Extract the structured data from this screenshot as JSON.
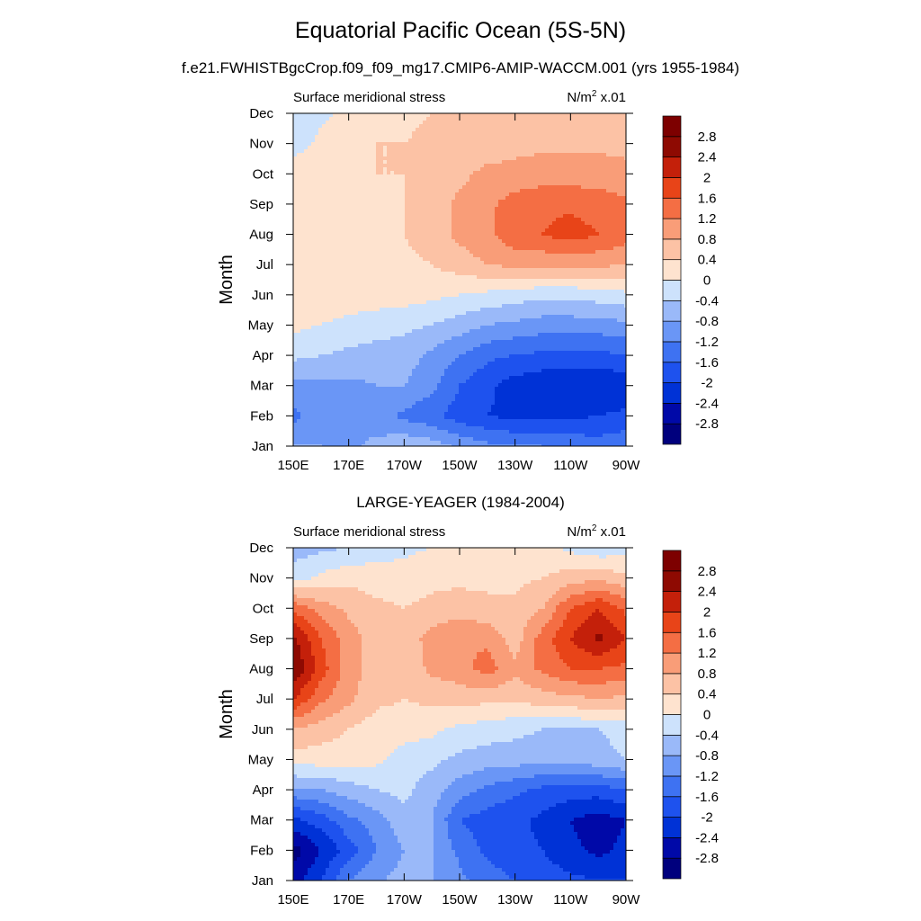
{
  "page": {
    "title": "Equatorial Pacific Ocean (5S-5N)",
    "subtitle": "f.e21.FWHISTBgcCrop.f09_f09_mg17.CMIP6-AMIP-WACCM.001 (yrs 1955-1984)"
  },
  "colors": {
    "levels": [
      -2.8,
      -2.4,
      -2.0,
      -1.6,
      -1.2,
      -0.8,
      -0.4,
      0.0,
      0.4,
      0.8,
      1.2,
      1.6,
      2.0,
      2.4,
      2.8
    ],
    "fills": [
      "#00007d",
      "#0009a8",
      "#0032d6",
      "#1e52ee",
      "#3e72f2",
      "#6a96f6",
      "#9ab9f9",
      "#cde2fc",
      "#fee3cf",
      "#fcc2a5",
      "#f99d78",
      "#f46e44",
      "#e84418",
      "#c4200a",
      "#8e0a02",
      "#7d0000"
    ]
  },
  "chart_data": [
    {
      "type": "heatmap",
      "title": "",
      "left_label": "Surface meridional stress",
      "right_label": "N/m",
      "right_label_sup": "2",
      "right_label_suffix": " x.01",
      "ylabel": "Month",
      "x_ticks": [
        "150E",
        "170E",
        "170W",
        "150W",
        "130W",
        "110W",
        "90W"
      ],
      "y_ticks": [
        "Jan",
        "Feb",
        "Mar",
        "Apr",
        "May",
        "Jun",
        "Jul",
        "Aug",
        "Sep",
        "Oct",
        "Nov",
        "Dec"
      ],
      "colorbar_labels": [
        "-2.8",
        "-2.4",
        "-2",
        "-1.6",
        "-1.2",
        "-0.8",
        "-0.4",
        "0",
        "0.4",
        "0.8",
        "1.2",
        "1.6",
        "2",
        "2.4",
        "2.8"
      ],
      "x_lon": [
        150,
        160,
        170,
        180,
        190,
        200,
        210,
        220,
        230,
        240,
        250,
        260,
        270
      ],
      "values": [
        [
          -0.8,
          -0.8,
          -0.9,
          -0.7,
          -0.5,
          -0.6,
          -0.9,
          -1.1,
          -1.2,
          -1.2,
          -1.3,
          -1.4,
          -1.3
        ],
        [
          -1.3,
          -1.0,
          -0.8,
          -1.0,
          -1.3,
          -1.5,
          -1.8,
          -2.0,
          -2.1,
          -2.1,
          -2.1,
          -2.0,
          -1.9
        ],
        [
          -0.9,
          -0.9,
          -0.9,
          -0.8,
          -0.8,
          -1.1,
          -1.6,
          -1.9,
          -2.2,
          -2.3,
          -2.4,
          -2.4,
          -2.3
        ],
        [
          -0.3,
          -0.4,
          -0.5,
          -0.6,
          -0.6,
          -0.9,
          -1.2,
          -1.5,
          -1.6,
          -1.7,
          -1.7,
          -1.7,
          -1.6
        ],
        [
          0.1,
          0.0,
          -0.1,
          -0.2,
          -0.3,
          -0.4,
          -0.6,
          -0.8,
          -0.9,
          -1.0,
          -1.0,
          -1.0,
          -0.9
        ],
        [
          0.3,
          0.2,
          0.2,
          0.2,
          0.2,
          0.1,
          0.0,
          -0.1,
          -0.2,
          -0.3,
          -0.3,
          -0.2,
          -0.1
        ],
        [
          0.4,
          0.3,
          0.3,
          0.3,
          0.3,
          0.4,
          0.6,
          0.8,
          0.9,
          0.9,
          0.9,
          0.9,
          0.8
        ],
        [
          0.3,
          0.3,
          0.3,
          0.3,
          0.4,
          0.6,
          0.9,
          1.1,
          1.5,
          1.6,
          1.8,
          1.6,
          1.4
        ],
        [
          0.3,
          0.3,
          0.3,
          0.3,
          0.4,
          0.6,
          0.9,
          1.1,
          1.4,
          1.5,
          1.5,
          1.4,
          1.3
        ],
        [
          0.3,
          0.3,
          0.3,
          0.4,
          0.4,
          0.5,
          0.7,
          0.9,
          0.9,
          1.0,
          1.0,
          1.0,
          0.9
        ],
        [
          -0.2,
          0.1,
          0.3,
          0.4,
          0.4,
          0.5,
          0.6,
          0.6,
          0.7,
          0.7,
          0.7,
          0.7,
          0.7
        ],
        [
          -0.2,
          -0.1,
          0.1,
          0.2,
          0.3,
          0.4,
          0.4,
          0.4,
          0.4,
          0.4,
          0.4,
          0.4,
          0.4
        ]
      ]
    },
    {
      "type": "heatmap",
      "title": "LARGE-YEAGER (1984-2004)",
      "left_label": "Surface meridional stress",
      "right_label": "N/m",
      "right_label_sup": "2",
      "right_label_suffix": " x.01",
      "ylabel": "Month",
      "x_ticks": [
        "150E",
        "170E",
        "170W",
        "150W",
        "130W",
        "110W",
        "90W"
      ],
      "y_ticks": [
        "Jan",
        "Feb",
        "Mar",
        "Apr",
        "May",
        "Jun",
        "Jul",
        "Aug",
        "Sep",
        "Oct",
        "Nov",
        "Dec"
      ],
      "colorbar_labels": [
        "-2.8",
        "-2.4",
        "-2",
        "-1.6",
        "-1.2",
        "-0.8",
        "-0.4",
        "0",
        "0.4",
        "0.8",
        "1.2",
        "1.6",
        "2",
        "2.4",
        "2.8"
      ],
      "x_lon": [
        150,
        160,
        170,
        180,
        190,
        200,
        210,
        220,
        230,
        240,
        250,
        260,
        270
      ],
      "values": [
        [
          -2.6,
          -2.0,
          -1.2,
          -0.9,
          -0.6,
          -0.8,
          -1.1,
          -1.4,
          -1.6,
          -1.8,
          -1.9,
          -2.0,
          -2.0
        ],
        [
          -3.0,
          -2.4,
          -1.8,
          -1.2,
          -0.8,
          -0.8,
          -1.3,
          -1.7,
          -1.9,
          -2.0,
          -2.3,
          -2.5,
          -2.3
        ],
        [
          -2.1,
          -1.8,
          -1.3,
          -1.0,
          -0.5,
          -0.8,
          -1.6,
          -1.8,
          -1.9,
          -2.1,
          -2.4,
          -2.6,
          -2.4
        ],
        [
          -0.9,
          -0.8,
          -0.6,
          -0.4,
          -0.3,
          -0.6,
          -1.0,
          -1.3,
          -1.5,
          -1.7,
          -1.8,
          -1.8,
          -1.6
        ],
        [
          0.2,
          0.2,
          0.2,
          0.1,
          -0.2,
          -0.3,
          -0.5,
          -0.6,
          -0.6,
          -0.7,
          -0.7,
          -0.5,
          -0.4
        ],
        [
          0.8,
          0.6,
          0.4,
          0.2,
          0.2,
          0.1,
          -0.1,
          -0.2,
          -0.3,
          -0.4,
          -0.4,
          -0.4,
          -0.3
        ],
        [
          2.0,
          1.3,
          0.9,
          0.5,
          0.4,
          0.5,
          0.6,
          0.5,
          0.5,
          0.6,
          0.7,
          0.8,
          0.7
        ],
        [
          2.8,
          1.8,
          1.0,
          0.6,
          0.5,
          0.9,
          1.0,
          1.4,
          0.9,
          1.3,
          1.6,
          1.6,
          1.5
        ],
        [
          2.5,
          1.6,
          1.0,
          0.6,
          0.5,
          1.0,
          1.2,
          1.1,
          0.6,
          1.4,
          2.0,
          2.5,
          2.0
        ],
        [
          1.5,
          1.0,
          0.7,
          0.5,
          0.4,
          0.5,
          0.6,
          0.5,
          0.5,
          0.8,
          1.6,
          2.0,
          1.5
        ],
        [
          -0.2,
          0.1,
          0.3,
          0.2,
          0.2,
          0.3,
          0.3,
          0.3,
          0.3,
          0.4,
          0.6,
          0.7,
          0.5
        ],
        [
          -0.6,
          -0.5,
          -0.4,
          -0.2,
          -0.1,
          0.0,
          0.1,
          0.1,
          0.1,
          0.1,
          -0.1,
          -0.3,
          -0.2
        ]
      ]
    }
  ]
}
